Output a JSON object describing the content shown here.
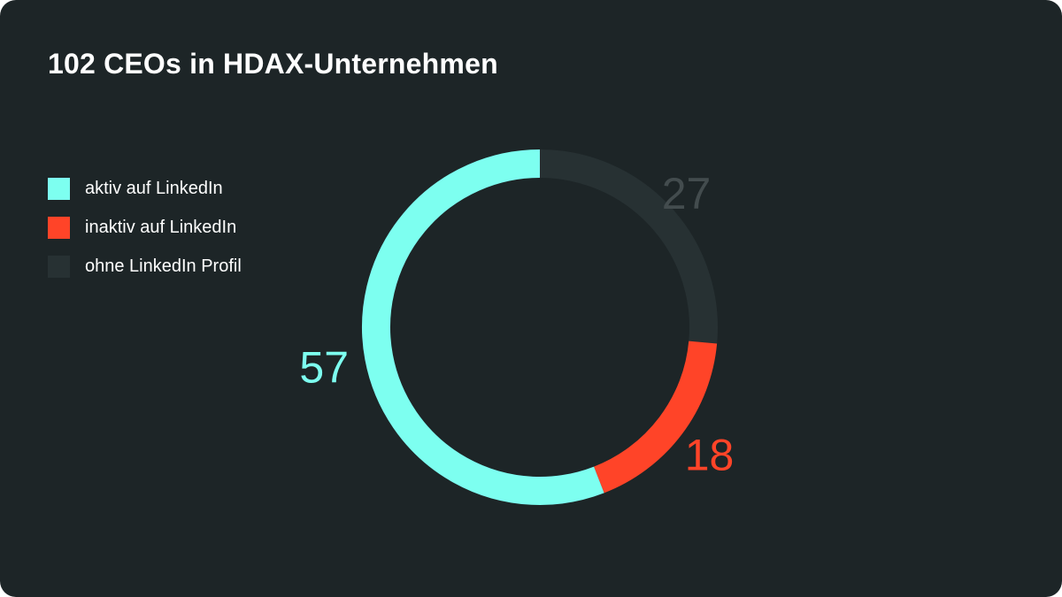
{
  "chart_data": {
    "type": "pie",
    "title": "102 CEOs in HDAX-Unternehmen",
    "categories": [
      "aktiv auf LinkedIn",
      "inaktiv auf LinkedIn",
      "ohne LinkedIn Profil"
    ],
    "values": [
      57,
      18,
      27
    ],
    "value_labels": [
      "57",
      "18",
      "27"
    ],
    "colors": [
      "#7dfff0",
      "#ff4428",
      "#273133"
    ],
    "label_colors": [
      "#7dfff0",
      "#ff4428",
      "#434c4e"
    ],
    "legend": "left",
    "donut": true
  },
  "colors": {
    "background": "#1d2527",
    "text": "#ffffff"
  }
}
